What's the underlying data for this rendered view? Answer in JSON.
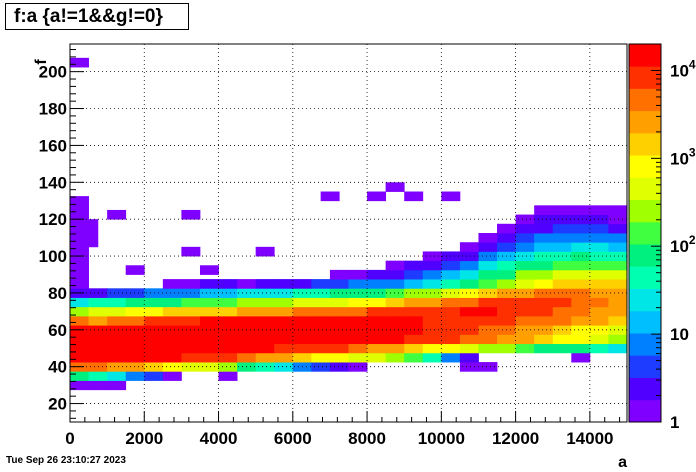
{
  "title": "f:a {a!=1&&g!=0}",
  "datestamp": "Tue Sep 26 23:10:27 2023",
  "chart_data": {
    "type": "heatmap",
    "xlabel": "a",
    "ylabel": "f",
    "xlim": [
      0,
      15000
    ],
    "ylim": [
      10,
      215
    ],
    "x_ticks": [
      "0",
      "2000",
      "4000",
      "6000",
      "8000",
      "10000",
      "12000",
      "14000"
    ],
    "y_ticks": [
      "20",
      "40",
      "60",
      "80",
      "100",
      "120",
      "140",
      "160",
      "180",
      "200"
    ],
    "grid": true,
    "z_scale": "log",
    "z_range": [
      1,
      20000
    ],
    "z_ticks": [
      "1",
      "10",
      "10^2",
      "10^3",
      "10^4"
    ],
    "palette": [
      "#7f00ff",
      "#5000ff",
      "#1e3cff",
      "#0080ff",
      "#00bfff",
      "#00e6e6",
      "#00ffb0",
      "#00f080",
      "#40ff40",
      "#a0ff00",
      "#e0ff00",
      "#ffff00",
      "#ffd000",
      "#ffa000",
      "#ff7000",
      "#ff3000",
      "#ff0000"
    ],
    "bin_width_x": 500,
    "bin_height_y": 5,
    "bands": [
      {
        "y": 30,
        "x_start": 0,
        "values": [
          1.2,
          1.5,
          1.3
        ]
      },
      {
        "y": 35,
        "x_start": 0,
        "values": [
          90,
          40,
          20,
          10,
          5,
          1.5,
          0,
          0,
          1.2
        ]
      },
      {
        "y": 40,
        "x_start": 0,
        "values": [
          6000,
          4000,
          3000,
          2000,
          1500,
          900,
          600,
          400,
          200,
          100,
          50,
          20,
          10,
          5,
          2,
          1.5,
          0,
          0,
          0,
          0,
          0,
          1.5,
          1.2
        ]
      },
      {
        "y": 45,
        "x_start": 0,
        "values": [
          18000,
          18000,
          17000,
          16000,
          15000,
          13000,
          11000,
          9000,
          7000,
          5000,
          3000,
          2000,
          1500,
          1000,
          800,
          600,
          400,
          300,
          150,
          50,
          10,
          2,
          0,
          0,
          0,
          0,
          0,
          1.2
        ]
      },
      {
        "y": 50,
        "x_start": 0,
        "values": [
          20000,
          20000,
          19000,
          19000,
          18000,
          17000,
          16000,
          15000,
          14000,
          13000,
          12000,
          11000,
          10000,
          9000,
          7000,
          5000,
          3000,
          2000,
          1500,
          1000,
          700,
          500,
          300,
          200,
          150,
          100,
          80,
          60,
          40,
          30,
          20,
          10,
          5,
          2,
          0,
          0,
          0,
          0,
          0,
          1.2,
          1.2,
          0,
          1.5,
          1.5
        ]
      },
      {
        "y": 55,
        "x_start": 0,
        "values": [
          20000,
          20000,
          20000,
          20000,
          20000,
          19000,
          19000,
          18000,
          18000,
          17000,
          17000,
          16000,
          16000,
          15000,
          15000,
          14000,
          13000,
          12000,
          11000,
          10000,
          8000,
          6000,
          4000,
          3000,
          2000,
          1500,
          1000,
          700,
          500,
          300,
          200,
          100,
          60,
          30,
          20,
          10,
          5,
          3,
          2,
          1.5,
          1.2,
          1.2,
          1.5,
          2,
          3,
          5,
          4,
          3,
          2,
          1.5
        ]
      },
      {
        "y": 60,
        "x_start": 0,
        "values": [
          18000,
          19000,
          19000,
          20000,
          20000,
          20000,
          19000,
          19000,
          18000,
          18000,
          17000,
          17000,
          16000,
          16000,
          15000,
          15000,
          14000,
          13000,
          12000,
          11000,
          10000,
          8000,
          6000,
          4000,
          3000,
          2000,
          1500,
          1000,
          700,
          500,
          300,
          200,
          100,
          60,
          30,
          20,
          10,
          8,
          6,
          5,
          4,
          4,
          4,
          3,
          3,
          2
        ]
      },
      {
        "y": 65,
        "x_start": 0,
        "values": [
          4000,
          3000,
          4000,
          6000,
          8000,
          10000,
          11000,
          12000,
          13000,
          14000,
          15000,
          16000,
          16000,
          16000,
          15000,
          15000,
          14000,
          13000,
          12000,
          11000,
          10000,
          9000,
          8000,
          7000,
          6000,
          5000,
          4000,
          3000,
          2000,
          1500,
          1000,
          700,
          500,
          300,
          200,
          100,
          50,
          20,
          10,
          5,
          3,
          2,
          1.5,
          2,
          3,
          4,
          3,
          2
        ]
      },
      {
        "y": 70,
        "x_start": 0,
        "values": [
          300,
          400,
          500,
          700,
          900,
          1100,
          1300,
          1500,
          1800,
          2000,
          2500,
          3000,
          3500,
          4000,
          5000,
          6000,
          7000,
          8000,
          9000,
          10000,
          11000,
          12000,
          12000,
          11000,
          10000,
          8000,
          6000,
          4000,
          3000,
          2000,
          1500,
          1000,
          600,
          300,
          100,
          40,
          15,
          5,
          2,
          1.5,
          0,
          0,
          1.2,
          0,
          1.2,
          1.2
        ]
      },
      {
        "y": 75,
        "x_start": 0,
        "values": [
          30,
          40,
          50,
          60,
          80,
          100,
          120,
          150,
          180,
          200,
          250,
          300,
          400,
          500,
          600,
          800,
          1000,
          1500,
          2000,
          3000,
          4000,
          6000,
          8000,
          9000,
          10000,
          9000,
          7000,
          5000,
          3500,
          2500,
          1800,
          1200,
          800,
          400,
          150,
          50,
          15,
          5,
          2,
          1.5,
          1.2
        ]
      },
      {
        "y": 80,
        "x_start": 0,
        "values": [
          2,
          3,
          5,
          5,
          8,
          10,
          10,
          12,
          15,
          20,
          25,
          30,
          40,
          50,
          60,
          80,
          100,
          150,
          200,
          300,
          500,
          800,
          1200,
          2000,
          3000,
          4000,
          5000,
          4000,
          3000,
          2000,
          1500,
          1000,
          600,
          300,
          100,
          30,
          8,
          2,
          1.5,
          1.2
        ]
      },
      {
        "y": 85,
        "x_start": 0,
        "values": [
          1.5,
          0,
          0,
          0,
          0,
          1.5,
          1.5,
          2,
          2,
          1.5,
          2,
          2,
          3,
          4,
          5,
          6,
          8,
          10,
          15,
          25,
          40,
          70,
          120,
          250,
          500,
          800,
          1200,
          1400,
          1300,
          1100,
          800,
          600,
          400,
          200,
          80,
          25,
          6,
          2,
          1.5
        ]
      },
      {
        "y": 90,
        "x_start": 0,
        "values": [
          1.3,
          0,
          0,
          0,
          0,
          0,
          0,
          0,
          0,
          0,
          0,
          0,
          0,
          0,
          1.2,
          1.5,
          2,
          3,
          5,
          8,
          15,
          30,
          60,
          100,
          200,
          300,
          400,
          500,
          450,
          350,
          250,
          150,
          80,
          30,
          10,
          3,
          1.5
        ]
      },
      {
        "y": 95,
        "x_start": 0,
        "values": [
          1.2,
          0,
          0,
          0,
          0,
          0,
          0,
          0,
          0,
          0,
          0,
          0,
          0,
          0,
          0,
          0,
          0,
          1.5,
          2,
          3,
          5,
          10,
          20,
          40,
          70,
          100,
          150,
          180,
          160,
          120,
          80,
          50,
          25,
          10,
          4,
          2
        ]
      },
      {
        "y": 100,
        "x_start": 0,
        "values": [
          1.2,
          0,
          0,
          0,
          0,
          0,
          0,
          0,
          0,
          0,
          0,
          0,
          0,
          0,
          0,
          0,
          0,
          0,
          0,
          1.5,
          2,
          3,
          6,
          12,
          20,
          35,
          50,
          60,
          55,
          45,
          30,
          20,
          10,
          4,
          2
        ]
      },
      {
        "y": 105,
        "x_start": 0,
        "values": [
          1.2,
          0,
          0,
          0,
          0,
          0,
          0,
          0,
          0,
          0,
          0,
          0,
          0,
          0,
          0,
          0,
          0,
          0,
          0,
          0,
          0,
          1.5,
          2,
          4,
          8,
          12,
          18,
          22,
          20,
          15,
          10,
          6,
          3,
          1.5
        ]
      },
      {
        "y": 110,
        "x_start": 0,
        "values": [
          1.2,
          0,
          0,
          0,
          0,
          0,
          0,
          0,
          0,
          0,
          0,
          0,
          0,
          0,
          0,
          0,
          0,
          0,
          0,
          0,
          0,
          0,
          1.5,
          2,
          4,
          6,
          8,
          10,
          9,
          7,
          5,
          3,
          1.5
        ]
      },
      {
        "y": 115,
        "x_start": 0,
        "values": [
          1.2,
          0,
          0,
          0,
          0,
          0,
          0,
          0,
          0,
          0,
          0,
          0,
          0,
          0,
          0,
          0,
          0,
          0,
          0,
          0,
          0,
          0,
          0,
          1.5,
          2,
          3,
          4,
          5,
          4,
          3,
          2,
          1.5
        ]
      },
      {
        "y": 120,
        "x_start": 0,
        "values": [
          1.2,
          0,
          0,
          0,
          0,
          0,
          0,
          0,
          0,
          0,
          0,
          0,
          0,
          0,
          0,
          0,
          0,
          0,
          0,
          0,
          0,
          0,
          0,
          0,
          1.5,
          2,
          2,
          2,
          2,
          1.5,
          1.2
        ]
      },
      {
        "y": 125,
        "x_start": 0,
        "values": [
          1.2,
          0,
          0,
          0,
          0,
          0,
          0,
          0,
          0,
          0,
          0,
          0,
          0,
          0,
          0,
          0,
          0,
          0,
          0,
          0,
          0,
          0,
          0,
          0,
          0,
          1.2,
          1.5,
          1.5,
          1.5,
          1.2
        ]
      },
      {
        "y": 130,
        "x_start": 0,
        "values": [
          1.2
        ]
      },
      {
        "y": 205,
        "x_start": 0,
        "values": [
          1.2
        ]
      }
    ],
    "isolated_bins": [
      {
        "x": 8750,
        "y": 137.5,
        "value": 1.5
      },
      {
        "x": 7000,
        "y": 132.5,
        "value": 1.2
      },
      {
        "x": 8250,
        "y": 132.5,
        "value": 1.2
      },
      {
        "x": 9250,
        "y": 132.5,
        "value": 1.2
      },
      {
        "x": 10250,
        "y": 132.5,
        "value": 1.2
      },
      {
        "x": 1250,
        "y": 122.5,
        "value": 1.2
      },
      {
        "x": 3250,
        "y": 122.5,
        "value": 1.2
      },
      {
        "x": 500,
        "y": 117.5,
        "value": 1.5
      },
      {
        "x": 500,
        "y": 112.5,
        "value": 1.5
      },
      {
        "x": 500,
        "y": 107.5,
        "value": 1.5
      },
      {
        "x": 3250,
        "y": 102.5,
        "value": 1.2
      },
      {
        "x": 5250,
        "y": 102.5,
        "value": 1.2
      },
      {
        "x": 1750,
        "y": 92.5,
        "value": 1.2
      },
      {
        "x": 3750,
        "y": 92.5,
        "value": 1.2
      }
    ]
  }
}
